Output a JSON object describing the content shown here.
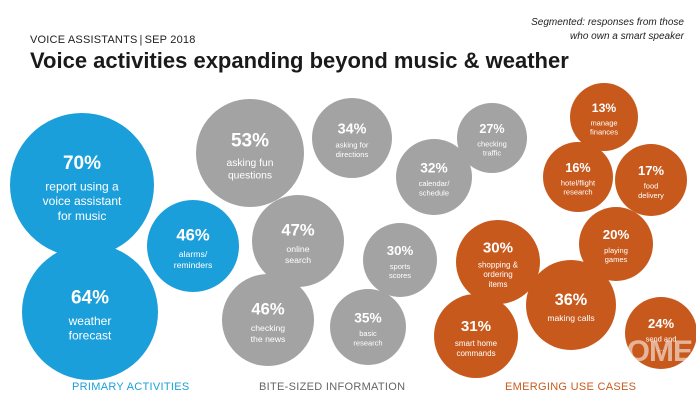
{
  "header": {
    "eyebrow_left": "VOICE ASSISTANTS",
    "eyebrow_sep": "|",
    "eyebrow_right": "SEP 2018",
    "title": "Voice activities expanding beyond music & weather",
    "note_line1": "Segmented: responses from those",
    "note_line2": "who own a smart speaker"
  },
  "colors": {
    "primary": "#1b9fdb",
    "bite": "#a3a3a3",
    "emerging": "#c8591d",
    "bubble_text": "#ffffff"
  },
  "categories": {
    "primary": "PRIMARY ACTIVITIES",
    "bite": "BITE-SIZED INFORMATION",
    "emerging": "EMERGING USE CASES"
  },
  "watermark": "HOME",
  "chart_data": {
    "type": "bubble",
    "unit": "%",
    "groups": [
      {
        "name": "PRIMARY ACTIVITIES",
        "color": "#1b9fdb",
        "items": [
          {
            "value": 70,
            "label": [
              "report using a",
              "voice assistant",
              "for music"
            ]
          },
          {
            "value": 64,
            "label": [
              "weather",
              "forecast"
            ]
          },
          {
            "value": 46,
            "label": [
              "alarms/",
              "reminders"
            ]
          }
        ]
      },
      {
        "name": "BITE-SIZED INFORMATION",
        "color": "#a3a3a3",
        "items": [
          {
            "value": 53,
            "label": [
              "asking fun",
              "questions"
            ]
          },
          {
            "value": 34,
            "label": [
              "asking for",
              "directions"
            ]
          },
          {
            "value": 27,
            "label": [
              "checking",
              "traffic"
            ]
          },
          {
            "value": 32,
            "label": [
              "calendar/",
              "schedule"
            ]
          },
          {
            "value": 47,
            "label": [
              "online",
              "search"
            ]
          },
          {
            "value": 30,
            "label": [
              "sports",
              "scores"
            ]
          },
          {
            "value": 46,
            "label": [
              "checking",
              "the news"
            ]
          },
          {
            "value": 35,
            "label": [
              "basic",
              "research"
            ]
          }
        ]
      },
      {
        "name": "EMERGING USE CASES",
        "color": "#c8591d",
        "items": [
          {
            "value": 13,
            "label": [
              "manage",
              "finances"
            ]
          },
          {
            "value": 16,
            "label": [
              "hotel/flight",
              "research"
            ]
          },
          {
            "value": 17,
            "label": [
              "food",
              "delivery"
            ]
          },
          {
            "value": 20,
            "label": [
              "playing",
              "games"
            ]
          },
          {
            "value": 30,
            "label": [
              "shopping &",
              "ordering",
              "items"
            ]
          },
          {
            "value": 36,
            "label": [
              "making calls"
            ]
          },
          {
            "value": 31,
            "label": [
              "smart home",
              "commands"
            ]
          },
          {
            "value": 24,
            "label": [
              "send and",
              "…"
            ]
          }
        ]
      }
    ]
  }
}
